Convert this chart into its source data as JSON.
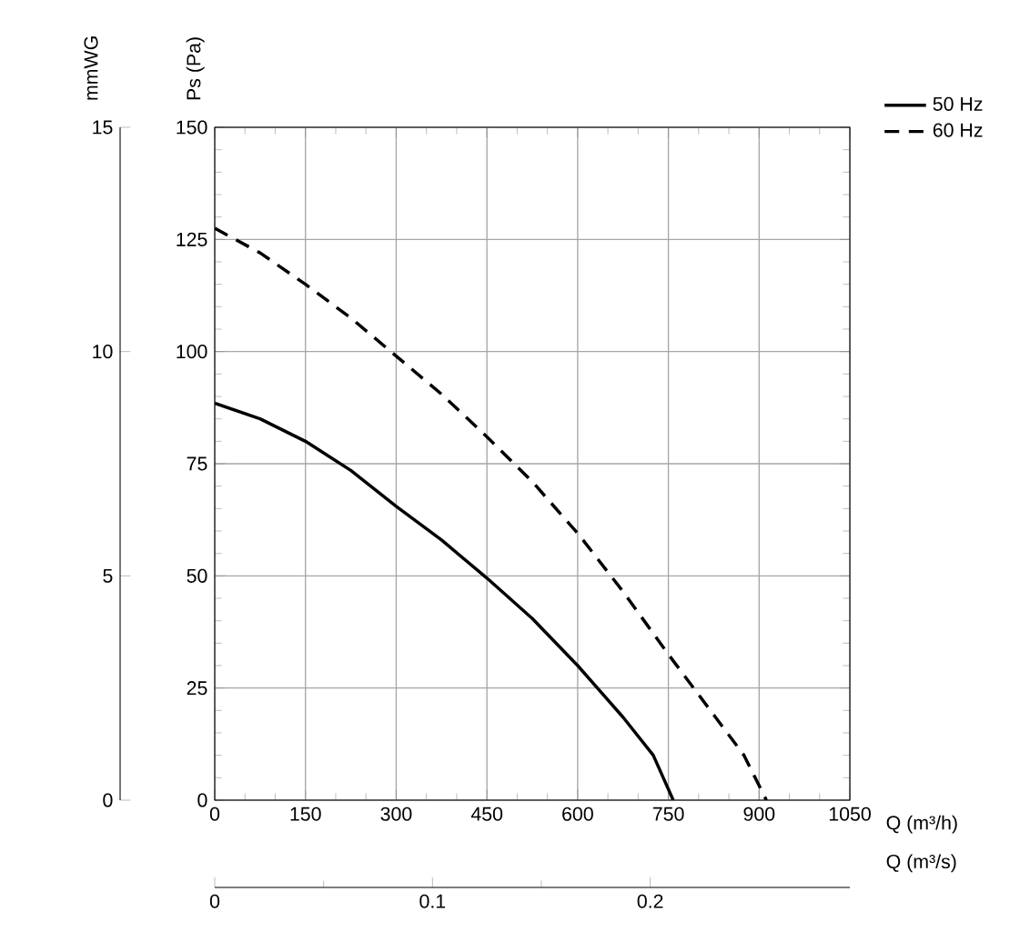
{
  "chart_data": {
    "type": "line",
    "xlabel": "Q (m³/h)",
    "ylabel": "Ps (Pa)",
    "y2label": "mmWG",
    "x2label": "Q (m³/s)",
    "xlim": [
      0,
      1050
    ],
    "xticks": [
      0,
      150,
      300,
      450,
      600,
      750,
      900,
      1050
    ],
    "ylim": [
      0,
      150
    ],
    "yticks": [
      0,
      25,
      50,
      75,
      100,
      125,
      150
    ],
    "y2lim": [
      0,
      15
    ],
    "y2ticks": [
      0,
      5,
      10,
      15
    ],
    "x2lim": [
      0,
      0.29167
    ],
    "x2ticks": [
      0,
      0.1,
      0.2
    ],
    "grid": true,
    "legend": "top right",
    "marker": "none",
    "series": [
      {
        "name": "50 Hz",
        "color": "#000000",
        "line_style": "solid",
        "x": [
          0,
          75,
          150,
          225,
          300,
          375,
          450,
          525,
          600,
          675,
          725,
          758
        ],
        "values": [
          88.5,
          85,
          80,
          73.5,
          65.5,
          58,
          49.5,
          40.5,
          30,
          18.5,
          10,
          0
        ]
      },
      {
        "name": "60 Hz",
        "color": "#000000",
        "line_style": "dashed",
        "x": [
          0,
          75,
          150,
          225,
          300,
          375,
          450,
          525,
          600,
          675,
          750,
          825,
          875,
          912
        ],
        "values": [
          127.5,
          122,
          115,
          107.5,
          99,
          90.5,
          81,
          71,
          59.5,
          46.5,
          32.5,
          19,
          10,
          0
        ]
      }
    ]
  }
}
